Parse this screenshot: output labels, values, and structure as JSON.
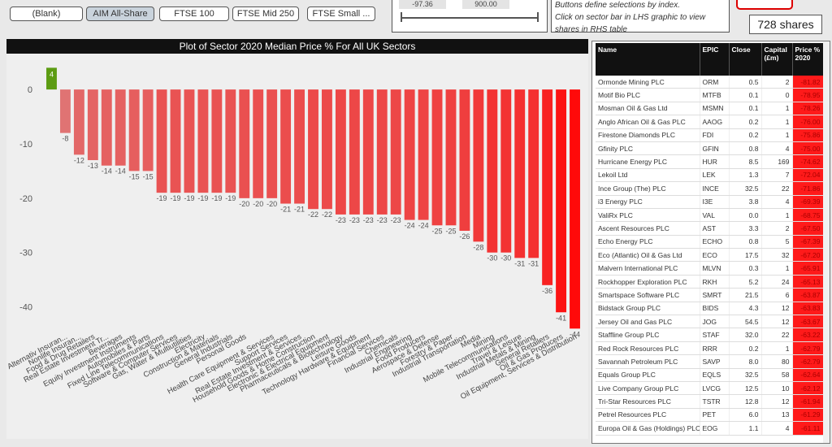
{
  "filters": {
    "buttons": [
      "(Blank)",
      "AIM All-Share",
      "FTSE 100",
      "FTSE Mid 250",
      "FTSE Small ..."
    ],
    "active": 1,
    "slider": {
      "min": "-97.36",
      "max": "900.00"
    },
    "help": [
      "Buttons define selections by index.",
      "Click on sector bar in LHS graphic to view shares in RHS table"
    ],
    "count": "728 shares"
  },
  "chart_data": {
    "type": "bar",
    "title": "Plot of Sector 2020 Median Price %  For All UK Sectors",
    "categories": [
      null,
      "Alternativ Insuran...",
      "Nonlife Insuran...",
      "Food & Drug Retailers",
      "Real Estate Investment Tr...",
      "Beverages",
      "Equity Investment Instruments",
      "Automobiles & Parts",
      "Fixed Line Telecommunications",
      "Software & Computer Services",
      "Gas, Water & Multiutilities",
      "Electricity",
      "Construction & Materials",
      "General Industrials",
      "Personal Goods",
      null,
      "Health Care Equipment & Services",
      "Support Services",
      "Real Estate Investment & Services",
      "Household Goods & Home Construction",
      "Electronic & Electrical Equipment",
      "Pharmaceuticals & Biotechnology",
      "Leisure Goods",
      "Technology Hardware & Equipment",
      "Financial Services",
      "Chemicals",
      "Industrial Engineering",
      "Food Producers",
      "Aerospace & Defense",
      "Forestry & Paper",
      "Industrial Transportation",
      "Media",
      "Mining",
      "Mobile Telecommunications",
      "Travel & Leisure",
      "Industrial Metals & Mining",
      "General Retailers",
      "Oil & Gas Producers",
      "Oil Equipment, Services & Distribution"
    ],
    "values": [
      4,
      -8,
      -12,
      -13,
      -14,
      -14,
      -15,
      -15,
      -19,
      -19,
      -19,
      -19,
      -19,
      -19,
      -20,
      -20,
      -20,
      -21,
      -21,
      -22,
      -22,
      -23,
      -23,
      -23,
      -23,
      -23,
      -24,
      -24,
      -25,
      -25,
      -26,
      -28,
      -30,
      -30,
      -31,
      -31,
      -36,
      -41,
      -44
    ],
    "color_positive": "#5c9c12",
    "color_scale": [
      "#d98a8a",
      "#ff0a0a"
    ],
    "ylim": [
      -45,
      6
    ],
    "yticks": [
      0,
      -10,
      -20,
      -30,
      -40
    ],
    "grid": false
  },
  "table": {
    "columns": [
      "Name",
      "EPIC",
      "Close",
      "Capital (£m)",
      "Price % 2020"
    ],
    "rows": [
      [
        "Ormonde Mining PLC",
        "ORM",
        "0.5",
        "2",
        "-81.82"
      ],
      [
        "Motif Bio PLC",
        "MTFB",
        "0.1",
        "0",
        "-78.95"
      ],
      [
        "Mosman Oil & Gas Ltd",
        "MSMN",
        "0.1",
        "1",
        "-78.26"
      ],
      [
        "Anglo African Oil & Gas PLC",
        "AAOG",
        "0.2",
        "1",
        "-76.00"
      ],
      [
        "Firestone Diamonds PLC",
        "FDI",
        "0.2",
        "1",
        "-75.86"
      ],
      [
        "Gfinity PLC",
        "GFIN",
        "0.8",
        "4",
        "-75.00"
      ],
      [
        "Hurricane Energy PLC",
        "HUR",
        "8.5",
        "169",
        "-74.62"
      ],
      [
        "Lekoil Ltd",
        "LEK",
        "1.3",
        "7",
        "-72.04"
      ],
      [
        "Ince Group (The) PLC",
        "INCE",
        "32.5",
        "22",
        "-71.86"
      ],
      [
        "i3 Energy PLC",
        "I3E",
        "3.8",
        "4",
        "-69.39"
      ],
      [
        "ValiRx PLC",
        "VAL",
        "0.0",
        "1",
        "-68.75"
      ],
      [
        "Ascent Resources PLC",
        "AST",
        "3.3",
        "2",
        "-67.50"
      ],
      [
        "Echo Energy PLC",
        "ECHO",
        "0.8",
        "5",
        "-67.39"
      ],
      [
        "Eco (Atlantic) Oil & Gas Ltd",
        "ECO",
        "17.5",
        "32",
        "-67.20"
      ],
      [
        "Malvern International PLC",
        "MLVN",
        "0.3",
        "1",
        "-65.91"
      ],
      [
        "Rockhopper Exploration PLC",
        "RKH",
        "5.2",
        "24",
        "-65.13"
      ],
      [
        "Smartspace Software PLC",
        "SMRT",
        "21.5",
        "6",
        "-63.87"
      ],
      [
        "Bidstack Group PLC",
        "BIDS",
        "4.3",
        "12",
        "-63.83"
      ],
      [
        "Jersey Oil and Gas PLC",
        "JOG",
        "54.5",
        "12",
        "-63.67"
      ],
      [
        "Staffline Group PLC",
        "STAF",
        "32.0",
        "22",
        "-63.22"
      ],
      [
        "Red Rock Resources PLC",
        "RRR",
        "0.2",
        "1",
        "-62.79"
      ],
      [
        "Savannah Petroleum PLC",
        "SAVP",
        "8.0",
        "80",
        "-62.79"
      ],
      [
        "Equals Group PLC",
        "EQLS",
        "32.5",
        "58",
        "-62.64"
      ],
      [
        "Live Company Group PLC",
        "LVCG",
        "12.5",
        "10",
        "-62.12"
      ],
      [
        "Tri-Star Resources PLC",
        "TSTR",
        "12.8",
        "12",
        "-61.94"
      ],
      [
        "Petrel Resources PLC",
        "PET",
        "6.0",
        "13",
        "-61.29"
      ],
      [
        "Europa Oil & Gas (Holdings) PLC",
        "EOG",
        "1.1",
        "4",
        "-61.11"
      ]
    ]
  }
}
